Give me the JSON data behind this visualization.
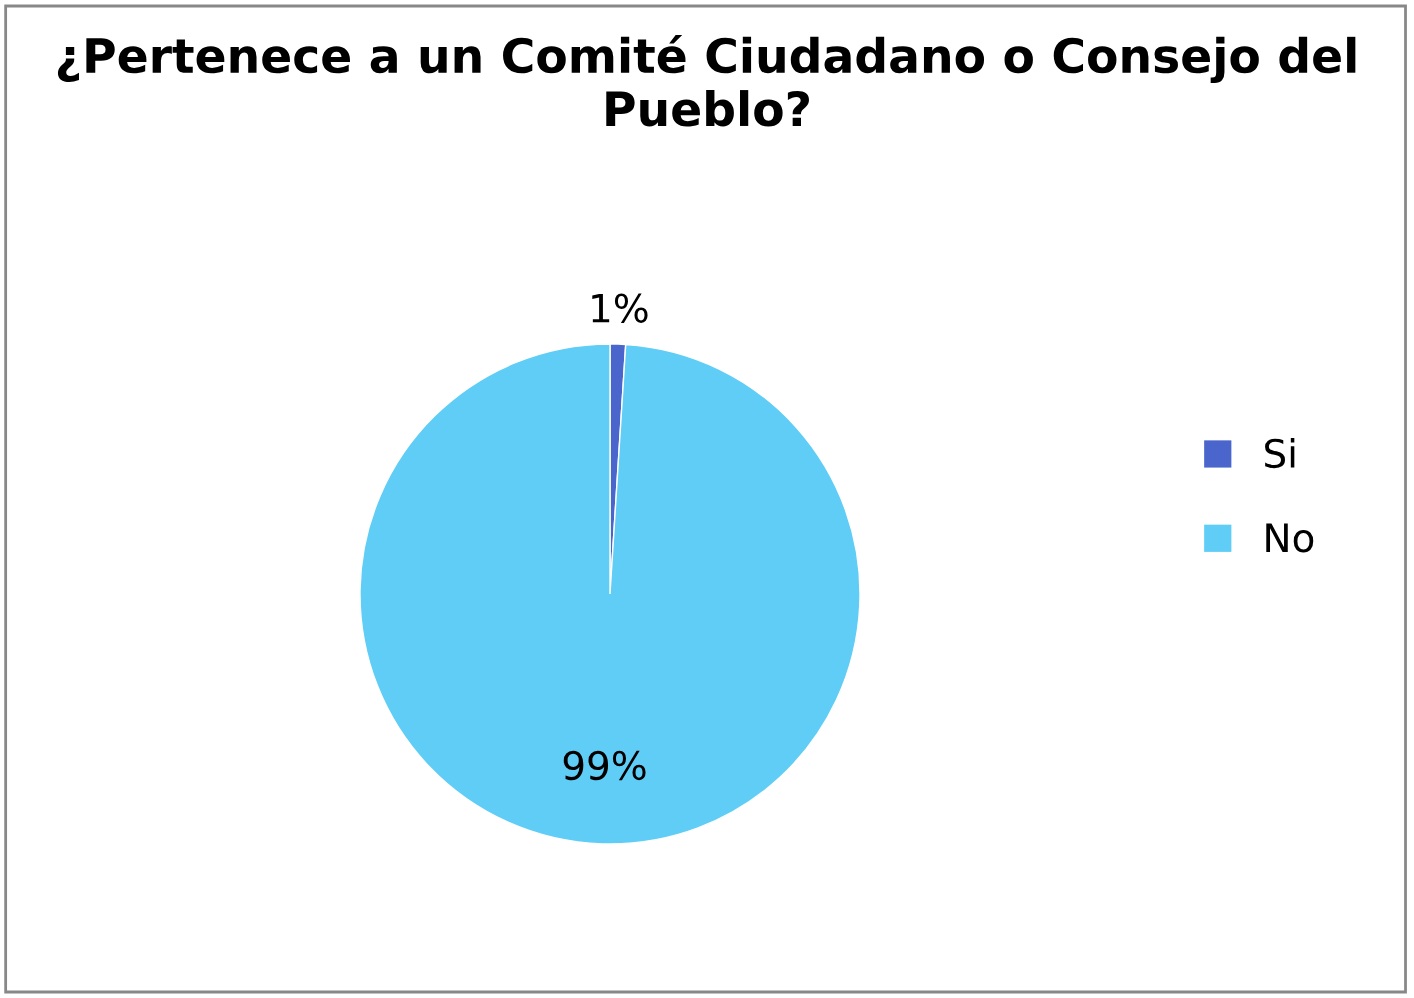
{
  "chart_data": {
    "type": "pie",
    "title": "¿Pertenece a un Comité Ciudadano o Consejo del Pueblo?",
    "categories": [
      "Si",
      "No"
    ],
    "values": [
      1,
      99
    ],
    "colors": [
      "#4a66cc",
      "#5fcdf5"
    ],
    "value_labels": [
      "1%",
      "99%"
    ],
    "legend": "right"
  }
}
